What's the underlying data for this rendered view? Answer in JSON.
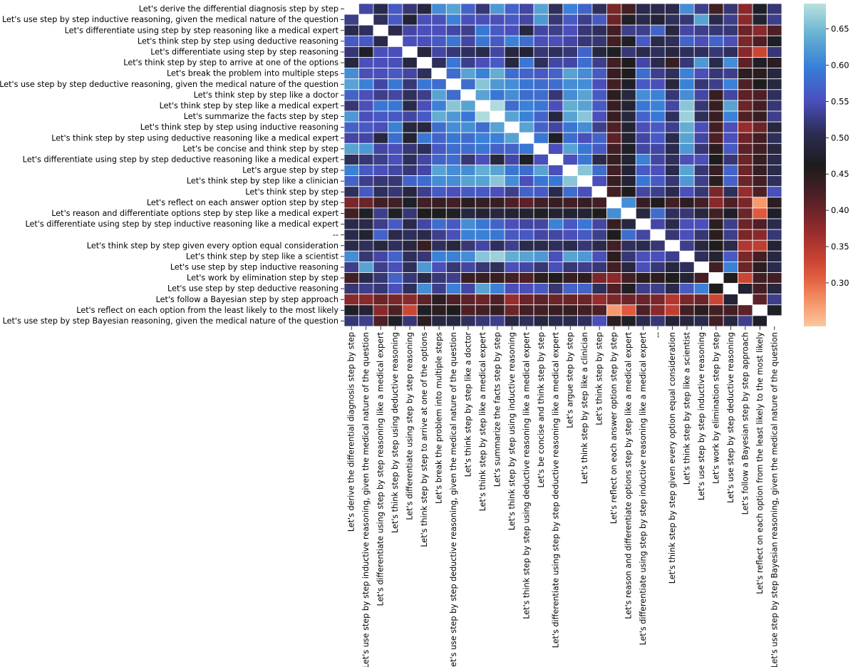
{
  "chart_data": {
    "type": "heatmap",
    "title": "",
    "xlabel": "",
    "ylabel": "",
    "labels": [
      "Let's derive the differential diagnosis step by step",
      "Let's use step by step inductive reasoning, given the medical nature of the question",
      "Let's differentiate using step by step reasoning like a medical expert",
      "Let's think step by step using deductive reasoning",
      "Let's differentiate using step by step reasoning",
      "Let's think step by step to arrive at one of the options",
      "Let's break the problem into multiple steps",
      "Let's use step by step deductive reasoning, given the medical nature of the question",
      "Let's think step by step like a doctor",
      "Let's think step by step like a medical expert",
      "Let's summarize the facts step by step",
      "Let's think step by step using inductive reasoning",
      "Let's think step by step using deductive reasoning like a medical expert",
      "Let's be concise and think step by step",
      "Let's differentiate using step by step deductive reasoning like a medical expert",
      "Let's argue step by step",
      "Let's think step by step like a clinician",
      "Let's think step by step",
      "Let's reflect on each answer option step by step",
      "Let's reason and differentiate options step by step like a medical expert",
      "Let's differentiate using step by step inductive reasoning like a medical expert",
      "--",
      "Let's think step by step given every option equal consideration",
      "Let's think step by step like a scientist",
      "Let's use step by step inductive reasoning",
      "Let's work by elimination step by step",
      "Let's use step by step deductive reasoning",
      "Let's follow a Bayesian step by step approach",
      "Let's reflect on each option from the least likely to the most likely",
      "Let's use step by step Bayesian reasoning, given the medical nature of the question"
    ],
    "values": [
      [
        null,
        0.54,
        0.5,
        0.56,
        0.52,
        0.49,
        0.61,
        0.63,
        0.57,
        0.52,
        0.62,
        0.57,
        0.54,
        0.63,
        0.51,
        0.6,
        0.57,
        0.51,
        0.39,
        0.43,
        0.5,
        0.5,
        0.5,
        0.61,
        0.53,
        0.43,
        0.52,
        0.38,
        0.47,
        0.52
      ],
      [
        0.53,
        null,
        0.51,
        0.56,
        0.48,
        0.55,
        0.55,
        0.6,
        0.55,
        0.55,
        0.55,
        0.56,
        0.54,
        0.62,
        0.52,
        0.56,
        0.53,
        0.56,
        0.4,
        0.47,
        0.5,
        0.48,
        0.51,
        0.52,
        0.63,
        0.5,
        0.53,
        0.38,
        0.48,
        0.53
      ],
      [
        0.5,
        0.51,
        null,
        0.5,
        0.54,
        0.55,
        0.55,
        0.54,
        0.53,
        0.59,
        0.56,
        0.55,
        0.49,
        0.54,
        0.53,
        0.55,
        0.52,
        0.51,
        0.43,
        0.53,
        0.53,
        0.57,
        0.49,
        0.54,
        0.53,
        0.52,
        0.52,
        0.4,
        0.38,
        0.42
      ],
      [
        0.56,
        0.56,
        0.5,
        null,
        0.55,
        0.55,
        0.56,
        0.59,
        0.54,
        0.59,
        0.56,
        0.6,
        0.58,
        0.55,
        0.55,
        0.54,
        0.52,
        0.52,
        0.43,
        0.47,
        0.56,
        0.5,
        0.51,
        0.57,
        0.55,
        0.57,
        0.55,
        0.39,
        0.42,
        0.47
      ],
      [
        0.52,
        0.47,
        0.55,
        0.55,
        null,
        0.49,
        0.54,
        0.52,
        0.51,
        0.5,
        0.54,
        0.49,
        0.48,
        0.52,
        0.51,
        0.52,
        0.57,
        0.49,
        0.47,
        0.52,
        0.5,
        0.51,
        0.49,
        0.51,
        0.51,
        0.52,
        0.51,
        0.38,
        0.33,
        0.52
      ],
      [
        0.49,
        0.55,
        0.55,
        0.55,
        0.49,
        null,
        0.51,
        0.59,
        0.53,
        0.55,
        0.56,
        0.49,
        0.59,
        0.51,
        0.54,
        0.54,
        0.58,
        0.53,
        0.43,
        0.46,
        0.54,
        0.5,
        0.44,
        0.52,
        0.62,
        0.5,
        0.61,
        0.41,
        0.47,
        0.45
      ],
      [
        0.61,
        0.55,
        0.55,
        0.56,
        0.54,
        0.51,
        null,
        0.58,
        0.63,
        0.6,
        0.64,
        0.58,
        0.57,
        0.56,
        0.57,
        0.63,
        0.61,
        0.56,
        0.44,
        0.46,
        0.58,
        0.53,
        0.51,
        0.6,
        0.55,
        0.52,
        0.53,
        0.45,
        0.45,
        0.49
      ],
      [
        0.63,
        0.6,
        0.54,
        0.59,
        0.52,
        0.59,
        0.58,
        null,
        0.58,
        0.66,
        0.62,
        0.61,
        0.59,
        0.58,
        0.58,
        0.61,
        0.61,
        0.55,
        0.43,
        0.47,
        0.56,
        0.55,
        0.49,
        0.6,
        0.52,
        0.53,
        0.6,
        0.42,
        0.46,
        0.49
      ],
      [
        0.57,
        0.55,
        0.53,
        0.54,
        0.51,
        0.53,
        0.63,
        0.58,
        null,
        0.63,
        0.59,
        0.61,
        0.58,
        0.58,
        0.52,
        0.61,
        0.63,
        0.56,
        0.45,
        0.49,
        0.61,
        0.6,
        0.52,
        0.61,
        0.54,
        0.44,
        0.54,
        0.41,
        0.42,
        0.51
      ],
      [
        0.52,
        0.55,
        0.59,
        0.59,
        0.5,
        0.55,
        0.6,
        0.66,
        0.63,
        null,
        0.68,
        0.58,
        0.6,
        0.59,
        0.55,
        0.64,
        0.63,
        0.56,
        0.44,
        0.48,
        0.59,
        0.6,
        0.54,
        0.66,
        0.52,
        0.44,
        0.63,
        0.4,
        0.43,
        0.52
      ],
      [
        0.62,
        0.55,
        0.56,
        0.56,
        0.54,
        0.56,
        0.64,
        0.62,
        0.59,
        0.68,
        null,
        0.63,
        0.6,
        0.57,
        0.49,
        0.63,
        0.66,
        0.55,
        0.44,
        0.49,
        0.57,
        0.59,
        0.51,
        0.67,
        0.51,
        0.44,
        0.6,
        0.42,
        0.44,
        0.53
      ],
      [
        0.57,
        0.56,
        0.55,
        0.6,
        0.49,
        0.49,
        0.58,
        0.61,
        0.61,
        0.58,
        0.63,
        null,
        0.63,
        0.57,
        0.54,
        0.59,
        0.61,
        0.53,
        0.42,
        0.48,
        0.55,
        0.56,
        0.53,
        0.64,
        0.55,
        0.43,
        0.55,
        0.37,
        0.4,
        0.49
      ],
      [
        0.54,
        0.54,
        0.49,
        0.58,
        0.48,
        0.59,
        0.57,
        0.59,
        0.58,
        0.6,
        0.6,
        0.63,
        null,
        0.59,
        0.47,
        0.58,
        0.55,
        0.57,
        0.41,
        0.48,
        0.54,
        0.56,
        0.5,
        0.63,
        0.54,
        0.42,
        0.55,
        0.4,
        0.43,
        0.51
      ],
      [
        0.63,
        0.62,
        0.54,
        0.55,
        0.52,
        0.51,
        0.56,
        0.58,
        0.58,
        0.59,
        0.57,
        0.57,
        0.59,
        null,
        0.55,
        0.63,
        0.59,
        0.56,
        0.43,
        0.47,
        0.54,
        0.54,
        0.5,
        0.62,
        0.52,
        0.45,
        0.56,
        0.41,
        0.43,
        0.49
      ],
      [
        0.51,
        0.52,
        0.53,
        0.55,
        0.51,
        0.54,
        0.57,
        0.58,
        0.52,
        0.55,
        0.49,
        0.54,
        0.47,
        0.55,
        null,
        0.55,
        0.59,
        0.5,
        0.44,
        0.48,
        0.6,
        0.54,
        0.51,
        0.55,
        0.55,
        0.46,
        0.52,
        0.4,
        0.44,
        0.5
      ],
      [
        0.6,
        0.56,
        0.55,
        0.54,
        0.52,
        0.54,
        0.63,
        0.61,
        0.61,
        0.64,
        0.63,
        0.59,
        0.58,
        0.63,
        0.55,
        null,
        0.66,
        0.58,
        0.43,
        0.48,
        0.56,
        0.55,
        0.5,
        0.63,
        0.52,
        0.44,
        0.57,
        0.4,
        0.44,
        0.5
      ],
      [
        0.57,
        0.53,
        0.52,
        0.52,
        0.57,
        0.58,
        0.61,
        0.61,
        0.63,
        0.63,
        0.66,
        0.61,
        0.55,
        0.59,
        0.59,
        0.66,
        null,
        0.55,
        0.44,
        0.48,
        0.59,
        0.56,
        0.52,
        0.62,
        0.53,
        0.45,
        0.57,
        0.4,
        0.43,
        0.51
      ],
      [
        0.51,
        0.56,
        0.51,
        0.52,
        0.49,
        0.53,
        0.56,
        0.55,
        0.56,
        0.56,
        0.55,
        0.53,
        0.57,
        0.56,
        0.5,
        0.58,
        0.55,
        null,
        0.43,
        0.46,
        0.54,
        0.53,
        0.5,
        0.55,
        0.52,
        0.39,
        0.51,
        0.37,
        0.42,
        0.55
      ],
      [
        0.39,
        0.4,
        0.43,
        0.43,
        0.47,
        0.43,
        0.44,
        0.43,
        0.45,
        0.44,
        0.44,
        0.42,
        0.41,
        0.43,
        0.44,
        0.43,
        0.44,
        0.43,
        null,
        0.61,
        0.44,
        0.46,
        0.43,
        0.45,
        0.43,
        0.38,
        0.42,
        0.39,
        0.27,
        0.45
      ],
      [
        0.43,
        0.47,
        0.53,
        0.47,
        0.52,
        0.46,
        0.46,
        0.47,
        0.49,
        0.48,
        0.49,
        0.48,
        0.48,
        0.47,
        0.48,
        0.48,
        0.48,
        0.46,
        0.61,
        null,
        0.49,
        0.58,
        0.51,
        0.52,
        0.49,
        0.43,
        0.47,
        0.4,
        0.31,
        0.47
      ],
      [
        0.5,
        0.5,
        0.53,
        0.56,
        0.5,
        0.54,
        0.58,
        0.56,
        0.61,
        0.59,
        0.57,
        0.55,
        0.54,
        0.54,
        0.6,
        0.56,
        0.59,
        0.54,
        0.44,
        0.49,
        null,
        0.54,
        0.5,
        0.55,
        0.55,
        0.45,
        0.53,
        0.4,
        0.42,
        0.5
      ],
      [
        0.5,
        0.48,
        0.57,
        0.5,
        0.51,
        0.5,
        0.53,
        0.55,
        0.6,
        0.6,
        0.59,
        0.56,
        0.56,
        0.54,
        0.54,
        0.55,
        0.56,
        0.53,
        0.46,
        0.58,
        0.54,
        null,
        0.52,
        0.55,
        0.52,
        0.45,
        0.53,
        0.39,
        0.38,
        0.52
      ],
      [
        0.5,
        0.51,
        0.49,
        0.51,
        0.49,
        0.44,
        0.51,
        0.49,
        0.52,
        0.54,
        0.51,
        0.53,
        0.5,
        0.5,
        0.51,
        0.5,
        0.52,
        0.5,
        0.43,
        0.51,
        0.5,
        0.52,
        null,
        0.53,
        0.49,
        0.46,
        0.5,
        0.35,
        0.34,
        0.48
      ],
      [
        0.61,
        0.52,
        0.54,
        0.57,
        0.51,
        0.52,
        0.6,
        0.6,
        0.61,
        0.66,
        0.67,
        0.64,
        0.63,
        0.62,
        0.55,
        0.63,
        0.62,
        0.55,
        0.45,
        0.52,
        0.55,
        0.55,
        0.53,
        null,
        0.51,
        0.48,
        0.56,
        0.39,
        0.43,
        0.49
      ],
      [
        0.53,
        0.63,
        0.53,
        0.55,
        0.51,
        0.62,
        0.55,
        0.52,
        0.54,
        0.52,
        0.51,
        0.55,
        0.54,
        0.52,
        0.55,
        0.52,
        0.53,
        0.52,
        0.43,
        0.49,
        0.55,
        0.52,
        0.49,
        0.51,
        null,
        0.43,
        0.6,
        0.4,
        0.45,
        0.5
      ],
      [
        0.43,
        0.5,
        0.52,
        0.57,
        0.52,
        0.5,
        0.52,
        0.53,
        0.44,
        0.44,
        0.44,
        0.43,
        0.42,
        0.45,
        0.46,
        0.44,
        0.45,
        0.39,
        0.38,
        0.43,
        0.45,
        0.45,
        0.46,
        0.48,
        0.43,
        null,
        0.46,
        0.33,
        0.43,
        0.43
      ],
      [
        0.52,
        0.53,
        0.52,
        0.55,
        0.51,
        0.61,
        0.53,
        0.6,
        0.54,
        0.63,
        0.6,
        0.55,
        0.55,
        0.56,
        0.52,
        0.57,
        0.57,
        0.51,
        0.42,
        0.47,
        0.53,
        0.53,
        0.5,
        0.56,
        0.6,
        0.46,
        null,
        0.48,
        0.43,
        0.49
      ],
      [
        0.38,
        0.38,
        0.4,
        0.39,
        0.38,
        0.41,
        0.45,
        0.42,
        0.41,
        0.4,
        0.42,
        0.37,
        0.4,
        0.41,
        0.4,
        0.4,
        0.4,
        0.37,
        0.39,
        0.4,
        0.4,
        0.39,
        0.35,
        0.39,
        0.4,
        0.33,
        0.48,
        null,
        0.41,
        0.53
      ],
      [
        0.47,
        0.48,
        0.38,
        0.42,
        0.33,
        0.47,
        0.45,
        0.46,
        0.42,
        0.43,
        0.44,
        0.4,
        0.43,
        0.43,
        0.44,
        0.44,
        0.43,
        0.42,
        0.27,
        0.31,
        0.42,
        0.38,
        0.34,
        0.43,
        0.45,
        0.43,
        0.43,
        0.41,
        null,
        0.47
      ],
      [
        0.52,
        0.53,
        0.42,
        0.47,
        0.52,
        0.45,
        0.49,
        0.49,
        0.51,
        0.52,
        0.53,
        0.49,
        0.51,
        0.49,
        0.5,
        0.5,
        0.51,
        0.55,
        0.45,
        0.47,
        0.5,
        0.52,
        0.48,
        0.49,
        0.5,
        0.43,
        0.49,
        0.53,
        0.47,
        null
      ]
    ],
    "vmin": 0.24,
    "vmax": 0.685,
    "colormap": "icefire",
    "colorbar_ticks": [
      0.3,
      0.35,
      0.4,
      0.45,
      0.5,
      0.55,
      0.6,
      0.65
    ],
    "colorbar_tick_labels": [
      "0.30",
      "0.35",
      "0.40",
      "0.45",
      "0.50",
      "0.55",
      "0.60",
      "0.65"
    ],
    "diagonal_color": "#ffffff",
    "cell_border_color": "#ffffff",
    "legend": "colorbar-right",
    "grid": false
  }
}
